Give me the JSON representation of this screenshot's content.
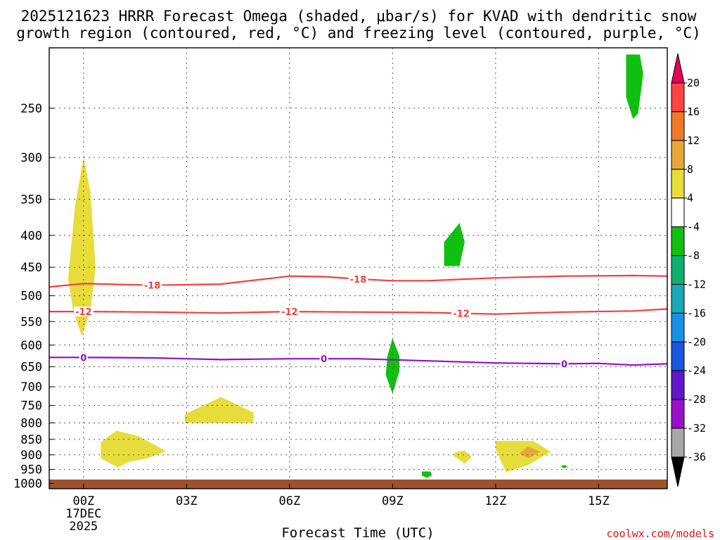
{
  "chart_data": {
    "type": "time-height",
    "title_line1": "2025121623 HRRR Forecast Omega (shaded, μbar/s) for KVAD with dendritic snow",
    "title_line2": "growth region (contoured, red, °C) and freezing level (contoured, purple, °C)",
    "xlabel": "Forecast Time (UTC)",
    "x_ticks": [
      {
        "hour": 0,
        "label": "00Z",
        "sub1": "17DEC",
        "sub2": "2025"
      },
      {
        "hour": 3,
        "label": "03Z"
      },
      {
        "hour": 6,
        "label": "06Z"
      },
      {
        "hour": 9,
        "label": "09Z"
      },
      {
        "hour": 12,
        "label": "12Z"
      },
      {
        "hour": 15,
        "label": "15Z"
      }
    ],
    "xlim": [
      -1,
      17
    ],
    "y_levels": [
      250,
      300,
      350,
      400,
      450,
      500,
      550,
      600,
      650,
      700,
      750,
      800,
      850,
      900,
      950,
      1000
    ],
    "ylim_hPa": [
      200,
      1020
    ],
    "terrain_hPa": 1010,
    "colorbar": {
      "labels": [
        "20",
        "16",
        "12",
        "8",
        "4",
        "-4",
        "-8",
        "-12",
        "-16",
        "-20",
        "-24",
        "-28",
        "-32",
        "-36"
      ],
      "colors": [
        "#e8005a",
        "#ff4444",
        "#f07828",
        "#e8a838",
        "#e8dc3a",
        "#ffffff",
        "#10c010",
        "#10b070",
        "#18a8b8",
        "#1890e8",
        "#1a55e0",
        "#6018c8",
        "#9a10c8",
        "#a8a8a8",
        "#000000"
      ]
    },
    "contours": [
      {
        "name": "dgz-18",
        "label": "-18",
        "color": "#f04040",
        "points": [
          [
            -1,
            484
          ],
          [
            0,
            478
          ],
          [
            2,
            481
          ],
          [
            4,
            479
          ],
          [
            5,
            472
          ],
          [
            6,
            465
          ],
          [
            7,
            466
          ],
          [
            8,
            470
          ],
          [
            9,
            473
          ],
          [
            10,
            473
          ],
          [
            12,
            468
          ],
          [
            14,
            465
          ],
          [
            16,
            464
          ],
          [
            17,
            465
          ]
        ],
        "label_hours": [
          2,
          8
        ]
      },
      {
        "name": "dgz-12",
        "label": "-12",
        "color": "#f04040",
        "points": [
          [
            -1,
            530
          ],
          [
            0,
            530
          ],
          [
            2,
            531
          ],
          [
            4,
            533
          ],
          [
            6,
            530
          ],
          [
            8,
            531
          ],
          [
            10,
            532
          ],
          [
            12,
            535
          ],
          [
            14,
            531
          ],
          [
            16,
            529
          ],
          [
            17,
            525
          ]
        ],
        "label_hours": [
          0,
          6,
          11
        ]
      },
      {
        "name": "freezing-level",
        "label": "0",
        "color": "#9010c8",
        "points": [
          [
            -1,
            628
          ],
          [
            0,
            628
          ],
          [
            2,
            629
          ],
          [
            4,
            633
          ],
          [
            6,
            631
          ],
          [
            8,
            631
          ],
          [
            10,
            636
          ],
          [
            12,
            641
          ],
          [
            14,
            643
          ],
          [
            15,
            642
          ],
          [
            16,
            646
          ],
          [
            17,
            643
          ]
        ],
        "label_hours": [
          0,
          7,
          14
        ]
      }
    ],
    "regions": [
      {
        "name": "lift-4-8-a",
        "color": "#e8dc3a",
        "points": [
          [
            -0.45,
            470
          ],
          [
            -0.25,
            360
          ],
          [
            0,
            300
          ],
          [
            0.2,
            340
          ],
          [
            0.35,
            450
          ],
          [
            0.2,
            530
          ],
          [
            -0.05,
            580
          ],
          [
            -0.3,
            530
          ]
        ]
      },
      {
        "name": "lift-4-8-b",
        "color": "#e8dc3a",
        "points": [
          [
            2.95,
            775
          ],
          [
            4,
            727
          ],
          [
            4.95,
            770
          ],
          [
            4.95,
            800
          ],
          [
            2.95,
            800
          ]
        ]
      },
      {
        "name": "lift-4-8-c",
        "color": "#e8dc3a",
        "points": [
          [
            0.5,
            860
          ],
          [
            0.95,
            823
          ],
          [
            1.6,
            840
          ],
          [
            2.4,
            888
          ],
          [
            1.9,
            910
          ],
          [
            1.3,
            925
          ],
          [
            1.0,
            943
          ],
          [
            0.5,
            912
          ]
        ]
      },
      {
        "name": "lift-4-8-d",
        "color": "#e8dc3a",
        "points": [
          [
            10.8,
            893
          ],
          [
            11.1,
            885
          ],
          [
            11.3,
            908
          ],
          [
            11.1,
            930
          ],
          [
            10.8,
            905
          ]
        ]
      },
      {
        "name": "lift-4-8-e",
        "color": "#e8dc3a",
        "points": [
          [
            12.0,
            855
          ],
          [
            13.1,
            855
          ],
          [
            13.6,
            890
          ],
          [
            12.95,
            935
          ],
          [
            12.3,
            960
          ],
          [
            12.3,
            958
          ],
          [
            12.0,
            880
          ]
        ]
      },
      {
        "name": "lift-8-12",
        "color": "#e8a838",
        "points": [
          [
            12.7,
            895
          ],
          [
            12.95,
            872
          ],
          [
            13.3,
            890
          ],
          [
            12.95,
            912
          ]
        ]
      },
      {
        "name": "sink-4-8-a",
        "color": "#10c010",
        "points": [
          [
            15.8,
            205
          ],
          [
            16.2,
            205
          ],
          [
            16.3,
            220
          ],
          [
            16.15,
            255
          ],
          [
            16.0,
            260
          ],
          [
            15.8,
            240
          ]
        ]
      },
      {
        "name": "sink-4-8-b",
        "color": "#10c010",
        "points": [
          [
            10.5,
            410
          ],
          [
            10.95,
            382
          ],
          [
            11.1,
            410
          ],
          [
            10.95,
            448
          ],
          [
            10.5,
            448
          ]
        ]
      },
      {
        "name": "sink-4-8-c",
        "color": "#10c010",
        "points": [
          [
            9.0,
            585
          ],
          [
            9.2,
            625
          ],
          [
            9.2,
            660
          ],
          [
            9.0,
            718
          ],
          [
            8.8,
            670
          ],
          [
            8.85,
            625
          ]
        ]
      },
      {
        "name": "sink-4-8-d",
        "color": "#10c010",
        "points": [
          [
            9.85,
            957
          ],
          [
            10.1,
            957
          ],
          [
            10.15,
            970
          ],
          [
            10.0,
            980
          ],
          [
            9.85,
            972
          ]
        ]
      },
      {
        "name": "sink-4-8-e",
        "color": "#10c010",
        "points": [
          [
            13.9,
            940
          ],
          [
            14.0,
            934
          ],
          [
            14.1,
            940
          ],
          [
            14.0,
            946
          ]
        ]
      }
    ]
  },
  "credit": "coolwx.com/models"
}
